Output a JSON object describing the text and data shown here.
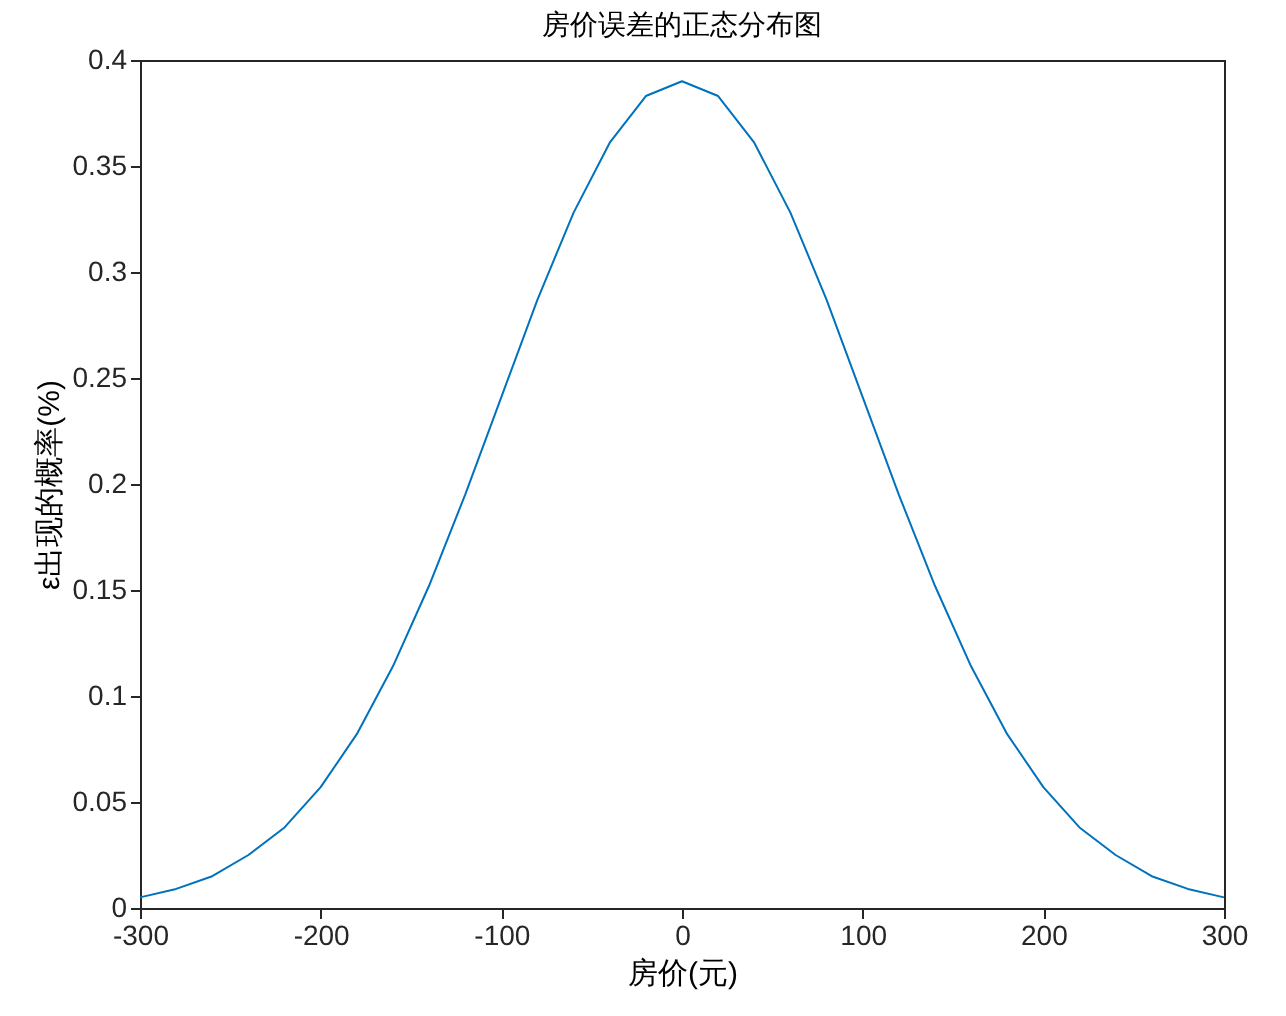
{
  "chart_data": {
    "type": "line",
    "title": "房价误差的正态分布图",
    "xlabel": "房价(元)",
    "ylabel": "ε出现的概率(%)",
    "x": [
      -300,
      -280,
      -260,
      -240,
      -220,
      -200,
      -180,
      -160,
      -140,
      -120,
      -100,
      -80,
      -60,
      -40,
      -20,
      0,
      20,
      40,
      60,
      80,
      100,
      120,
      140,
      160,
      180,
      200,
      220,
      240,
      260,
      280,
      300
    ],
    "series": [
      {
        "color": "#0072bd",
        "values": [
          0.005,
          0.009,
          0.015,
          0.025,
          0.038,
          0.057,
          0.082,
          0.114,
          0.152,
          0.195,
          0.241,
          0.287,
          0.328,
          0.361,
          0.383,
          0.39,
          0.383,
          0.361,
          0.328,
          0.287,
          0.241,
          0.195,
          0.152,
          0.114,
          0.082,
          0.057,
          0.038,
          0.025,
          0.015,
          0.009,
          0.005
        ]
      }
    ],
    "xlim": [
      -300,
      300
    ],
    "xticks": [
      -300,
      -200,
      -100,
      0,
      100,
      200,
      300
    ],
    "ylim": [
      0,
      0.4
    ],
    "yticks": [
      0,
      0.05,
      0.1,
      0.15,
      0.2,
      0.25,
      0.3,
      0.35,
      0.4
    ],
    "grid": false,
    "legend": false,
    "marker": "none",
    "line_style": "solid"
  }
}
